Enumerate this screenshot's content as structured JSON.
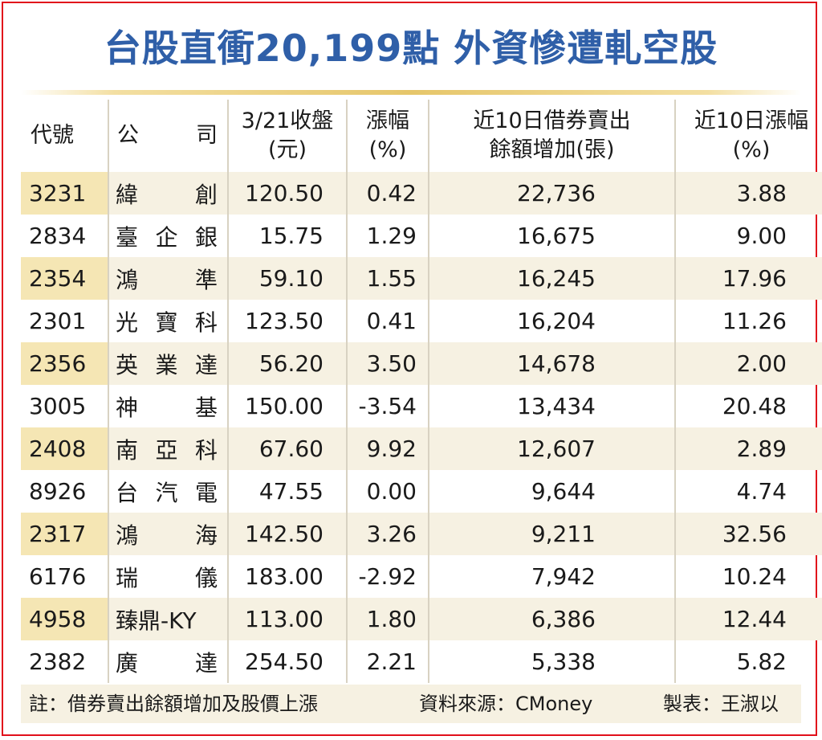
{
  "title": "台股直衝20,199點 外資慘遭軋空股",
  "columns": {
    "code": "代號",
    "company_left": "公",
    "company_right": "司",
    "close_line1": "3/21收盤",
    "close_line2": "(元)",
    "chg_line1": "漲幅",
    "chg_line2": "(%)",
    "short_line1": "近10日借券賣出",
    "short_line2": "餘額增加(張)",
    "ten_line1": "近10日漲幅",
    "ten_line2": "(%)"
  },
  "rows": [
    {
      "code": "3231",
      "name": "緯創",
      "close": "120.50",
      "chg": "0.42",
      "short": "22,736",
      "ten": "3.88"
    },
    {
      "code": "2834",
      "name": "臺企銀",
      "close": "15.75",
      "chg": "1.29",
      "short": "16,675",
      "ten": "9.00"
    },
    {
      "code": "2354",
      "name": "鴻準",
      "close": "59.10",
      "chg": "1.55",
      "short": "16,245",
      "ten": "17.96"
    },
    {
      "code": "2301",
      "name": "光寶科",
      "close": "123.50",
      "chg": "0.41",
      "short": "16,204",
      "ten": "11.26"
    },
    {
      "code": "2356",
      "name": "英業達",
      "close": "56.20",
      "chg": "3.50",
      "short": "14,678",
      "ten": "2.00"
    },
    {
      "code": "3005",
      "name": "神基",
      "close": "150.00",
      "chg": "-3.54",
      "short": "13,434",
      "ten": "20.48"
    },
    {
      "code": "2408",
      "name": "南亞科",
      "close": "67.60",
      "chg": "9.92",
      "short": "12,607",
      "ten": "2.89"
    },
    {
      "code": "8926",
      "name": "台汽電",
      "close": "47.55",
      "chg": "0.00",
      "short": "9,644",
      "ten": "4.74"
    },
    {
      "code": "2317",
      "name": "鴻海",
      "close": "142.50",
      "chg": "3.26",
      "short": "9,211",
      "ten": "32.56"
    },
    {
      "code": "6176",
      "name": "瑞儀",
      "close": "183.00",
      "chg": "-2.92",
      "short": "7,942",
      "ten": "10.24"
    },
    {
      "code": "4958",
      "name": "臻鼎-KY",
      "close": "113.00",
      "chg": "1.80",
      "short": "6,386",
      "ten": "12.44"
    },
    {
      "code": "2382",
      "name": "廣達",
      "close": "254.50",
      "chg": "2.21",
      "short": "5,338",
      "ten": "5.82"
    }
  ],
  "footer": {
    "note": "註：借券賣出餘額增加及股價上漲",
    "source": "資料來源：CMoney",
    "maker": "製表：王淑以"
  },
  "colors": {
    "title": "#2f5fa8",
    "border": "#e1101b",
    "shade": "#f6f1e2",
    "code_shade": "#f5e6b4"
  }
}
